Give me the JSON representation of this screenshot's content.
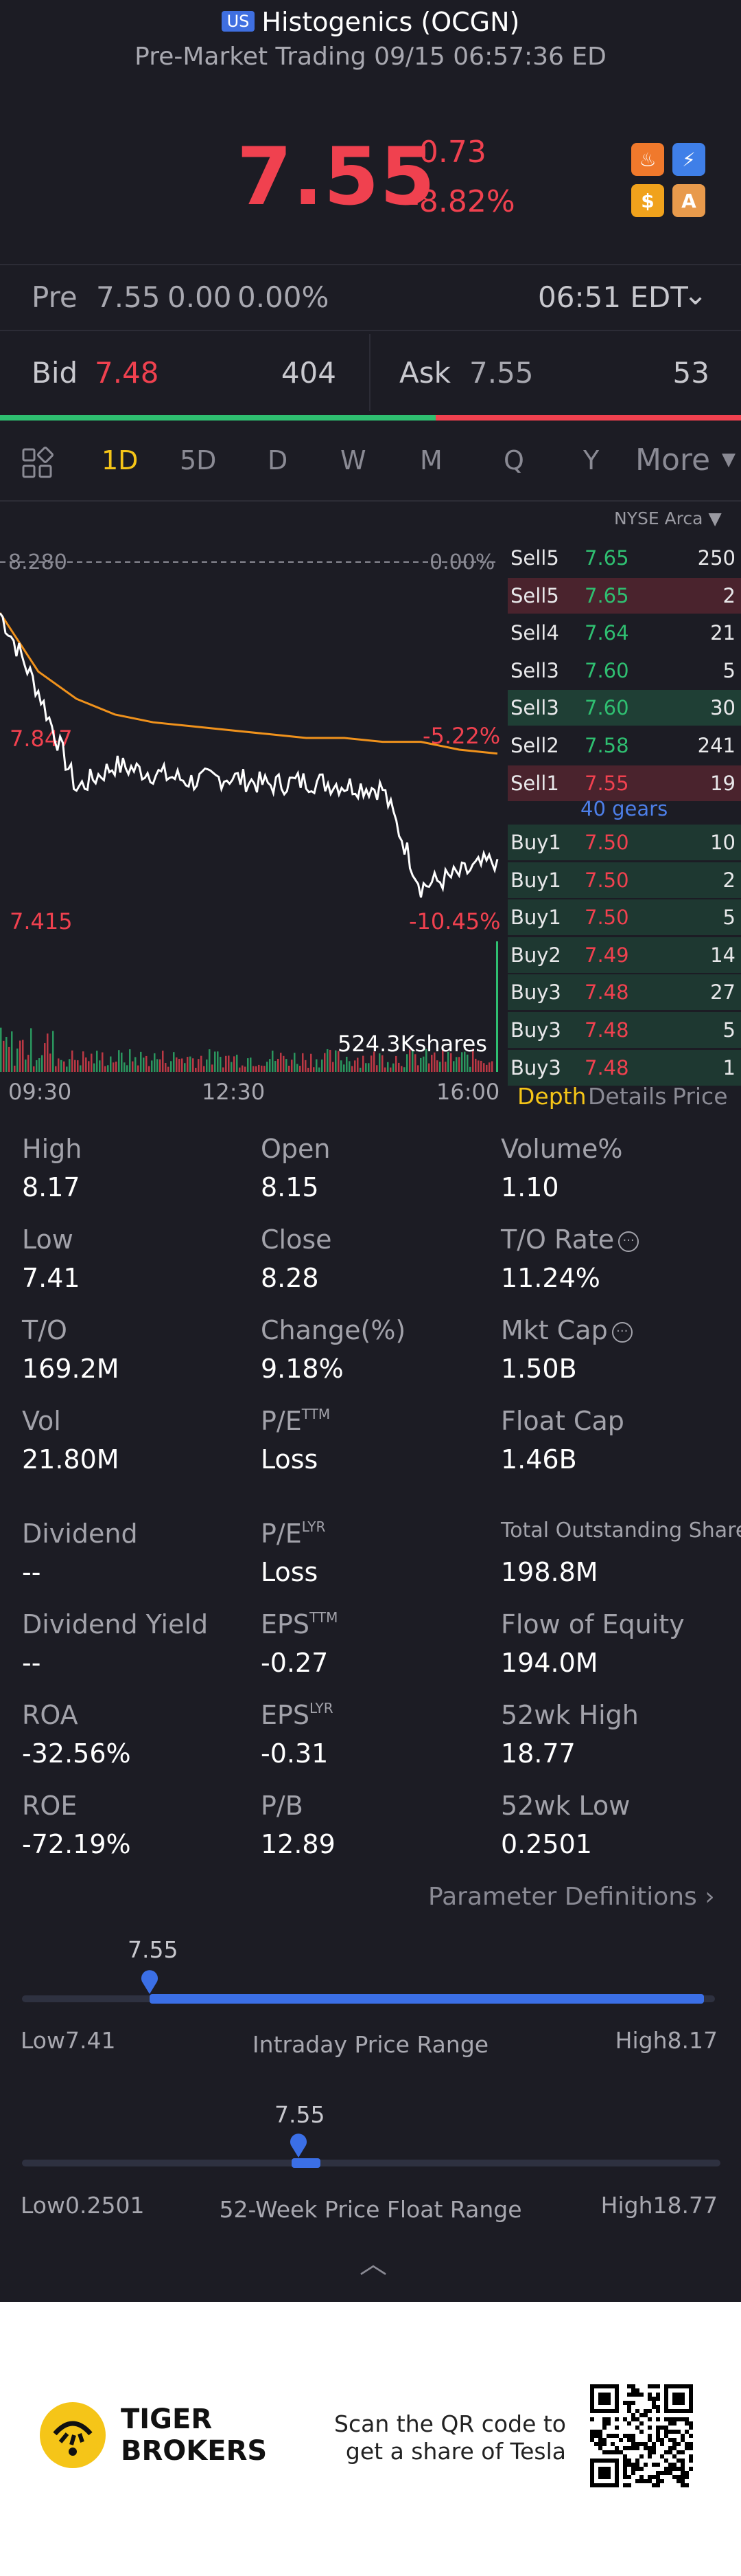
{
  "header": {
    "market_badge": "US",
    "title": "Histogenics (OCGN)",
    "subtitle": "Pre-Market Trading 09/15 06:57:36 ED"
  },
  "quote": {
    "price": "7.55",
    "change": "-0.73",
    "change_pct": "-8.82%"
  },
  "quick_icons": [
    "fire-icon",
    "lightning-icon",
    "dollar-icon",
    "shield-a-icon"
  ],
  "pre_market": {
    "label": "Pre",
    "price": "7.55",
    "change": "0.00",
    "change_pct": "0.00%",
    "time": "06:51 EDT"
  },
  "bid_ask": {
    "bid_label": "Bid",
    "bid_price": "7.48",
    "bid_size": "404",
    "ask_label": "Ask",
    "ask_price": "7.55",
    "ask_size": "53",
    "bid_share": 0.588
  },
  "periods": [
    "1D",
    "5D",
    "D",
    "W",
    "M",
    "Q",
    "Y",
    "More"
  ],
  "active_period": "1D",
  "chart": {
    "prev_close_label": "8.280",
    "prev_close_pct": "0.00%",
    "high_label": "7.847",
    "high_pct": "-5.22%",
    "low_label": "7.415",
    "low_pct": "-10.45%",
    "volume_label": "524.3Kshares",
    "x_labels": [
      "09:30",
      "12:30",
      "16:00"
    ]
  },
  "chart_data": {
    "type": "line",
    "x": [
      "09:30",
      "10:00",
      "10:30",
      "11:00",
      "11:30",
      "12:00",
      "12:30",
      "13:00",
      "13:30",
      "14:00",
      "14:30",
      "15:00",
      "15:30",
      "16:00"
    ],
    "series": [
      {
        "values": [
          8.15,
          7.95,
          7.7,
          7.76,
          7.74,
          7.72,
          7.73,
          7.71,
          7.72,
          7.71,
          7.7,
          7.45,
          7.48,
          7.52
        ]
      },
      {
        "values": [
          8.15,
          8.0,
          7.93,
          7.89,
          7.87,
          7.86,
          7.85,
          7.84,
          7.83,
          7.83,
          7.82,
          7.82,
          7.8,
          7.79
        ]
      }
    ],
    "colors": [
      "#ffffff",
      "#f0921c"
    ],
    "ylim": [
      7.415,
      8.28
    ],
    "prev_close": 8.28
  },
  "order_book": {
    "venue": "NYSE Arca",
    "gears": "40 gears",
    "sells": [
      {
        "label": "Sell5",
        "price": "7.65",
        "qty": "250",
        "bar": 0.0
      },
      {
        "label": "Sell5",
        "price": "7.65",
        "qty": "2",
        "bar": 1.0
      },
      {
        "label": "Sell4",
        "price": "7.64",
        "qty": "21",
        "bar": 0.0
      },
      {
        "label": "Sell3",
        "price": "7.60",
        "qty": "5",
        "bar": 0.0
      },
      {
        "label": "Sell3",
        "price": "7.60",
        "qty": "30",
        "bar": 1.0
      },
      {
        "label": "Sell2",
        "price": "7.58",
        "qty": "241",
        "bar": 0.0
      },
      {
        "label": "Sell1",
        "price": "7.55",
        "qty": "19",
        "bar": 1.0
      }
    ],
    "buys": [
      {
        "label": "Buy1",
        "price": "7.50",
        "qty": "10",
        "bar": 1.0
      },
      {
        "label": "Buy1",
        "price": "7.50",
        "qty": "2",
        "bar": 1.0
      },
      {
        "label": "Buy1",
        "price": "7.50",
        "qty": "5",
        "bar": 1.0
      },
      {
        "label": "Buy2",
        "price": "7.49",
        "qty": "14",
        "bar": 1.0
      },
      {
        "label": "Buy3",
        "price": "7.48",
        "qty": "27",
        "bar": 1.0
      },
      {
        "label": "Buy3",
        "price": "7.48",
        "qty": "5",
        "bar": 1.0
      },
      {
        "label": "Buy3",
        "price": "7.48",
        "qty": "1",
        "bar": 1.0
      }
    ],
    "tabs": [
      "Depth",
      "Details",
      "Price"
    ]
  },
  "stats": {
    "high_label": "High",
    "high": "8.17",
    "open_label": "Open",
    "open": "8.15",
    "volpct_label": "Volume%",
    "volpct": "1.10",
    "low_label": "Low",
    "low": "7.41",
    "close_label": "Close",
    "close": "8.28",
    "tor_label": "T/O Rate",
    "tor": "11.24%",
    "to_label": "T/O",
    "to": "169.2M",
    "chg_label": "Change(%)",
    "chg": "9.18%",
    "mcap_label": "Mkt Cap",
    "mcap": "1.50B",
    "vol_label": "Vol",
    "vol": "21.80M",
    "pe_label": "P/E",
    "pe_sup": "TTM",
    "pe": "Loss",
    "fcap_label": "Float Cap",
    "fcap": "1.46B",
    "div_label": "Dividend",
    "div": "--",
    "pel_label": "P/E",
    "pel_sup": "LYR",
    "pel": "Loss",
    "tos_label": "Total Outstanding Shares",
    "tos": "198.8M",
    "dy_label": "Dividend Yield",
    "dy": "--",
    "eps_label": "EPS",
    "eps_sup": "TTM",
    "eps": "-0.27",
    "foe_label": "Flow of Equity",
    "foe": "194.0M",
    "roa_label": "ROA",
    "roa": "-32.56%",
    "epsl_label": "EPS",
    "epsl_sup": "LYR",
    "epsl": "-0.31",
    "h52_label": "52wk High",
    "h52": "18.77",
    "roe_label": "ROE",
    "roe": "-72.19%",
    "pb_label": "P/B",
    "pb": "12.89",
    "l52_label": "52wk Low",
    "l52": "0.2501"
  },
  "param_def": "Parameter Definitions",
  "intraday_range": {
    "current": "7.55",
    "low_text": "Low7.41",
    "high_text": "High8.17",
    "title": "Intraday Price Range",
    "position": 0.184
  },
  "week52_range": {
    "current": "7.55",
    "low_text": "Low0.2501",
    "high_text": "High18.77",
    "title": "52-Week Price Float Range",
    "position": 0.396
  },
  "footer": {
    "brand_line1": "TIGER",
    "brand_line2": "BROKERS",
    "scan_line1": "Scan the QR code to",
    "scan_line2": "get a share of Tesla"
  },
  "colors": {
    "up": "#2fbf71",
    "down": "#f0414f",
    "accent": "#f5c518",
    "blue": "#3b6fe6",
    "background": "#1c1c24"
  }
}
